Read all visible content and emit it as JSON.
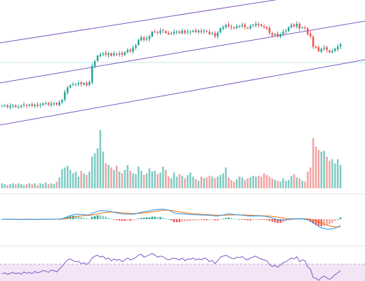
{
  "colors": {
    "up": "#26a69a",
    "down": "#ef5350",
    "volume_up": "#80cbc4",
    "volume_down": "#f3a3a1",
    "channel": "#7e57c2",
    "dotted_ref": "#26a69a",
    "macd_line": "#2196f3",
    "signal_line": "#ff6d00",
    "rsi_line": "#7e57c2",
    "rsi_band": "#f3e5f5",
    "separator": "#e6e6e6"
  },
  "chart_data": [
    {
      "type": "candlestick",
      "panel": "price",
      "ylim": [
        0,
        100
      ],
      "reference_level": 50,
      "closes": [
        12,
        12,
        11,
        12,
        12,
        11,
        11,
        12,
        13,
        12,
        13,
        12,
        13,
        12,
        13,
        14,
        14,
        13,
        14,
        14,
        13,
        15,
        17,
        24,
        28,
        30,
        31,
        31,
        32,
        31,
        32,
        30,
        33,
        47,
        51,
        56,
        57,
        58,
        57,
        58,
        56,
        58,
        57,
        58,
        57,
        59,
        61,
        60,
        63,
        65,
        70,
        72,
        70,
        71,
        73,
        77,
        77,
        76,
        78,
        78,
        76,
        75,
        76,
        77,
        77,
        76,
        78,
        76,
        77,
        77,
        78,
        77,
        78,
        77,
        78,
        77,
        75,
        76,
        73,
        76,
        80,
        81,
        83,
        82,
        81,
        80,
        82,
        82,
        83,
        81,
        80,
        82,
        83,
        84,
        83,
        82,
        81,
        80,
        76,
        74,
        75,
        73,
        75,
        77,
        78,
        81,
        83,
        82,
        84,
        80,
        81,
        80,
        75,
        73,
        64,
        63,
        60,
        62,
        63,
        61,
        59,
        60,
        62,
        64,
        66
      ]
    },
    {
      "type": "bar",
      "panel": "volume",
      "values": [
        6,
        5,
        4,
        5,
        6,
        5,
        6,
        5,
        4,
        5,
        6,
        5,
        6,
        4,
        6,
        5,
        7,
        5,
        6,
        5,
        8,
        13,
        23,
        25,
        27,
        22,
        18,
        20,
        14,
        21,
        18,
        16,
        20,
        38,
        42,
        48,
        70,
        44,
        30,
        28,
        25,
        22,
        27,
        20,
        18,
        22,
        28,
        21,
        18,
        17,
        26,
        21,
        16,
        18,
        24,
        20,
        21,
        17,
        19,
        26,
        22,
        14,
        12,
        19,
        14,
        17,
        15,
        12,
        16,
        19,
        14,
        11,
        9,
        14,
        12,
        13,
        15,
        14,
        12,
        14,
        16,
        18,
        25,
        13,
        10,
        8,
        11,
        14,
        13,
        10,
        12,
        13,
        15,
        14,
        15,
        14,
        18,
        16,
        14,
        12,
        10,
        9,
        8,
        12,
        9,
        10,
        15,
        17,
        13,
        12,
        9,
        8,
        20,
        25,
        60,
        50,
        46,
        44,
        45,
        38,
        33,
        35,
        30,
        35,
        28
      ]
    },
    {
      "type": "line",
      "panel": "macd",
      "ylim": [
        -20,
        20
      ],
      "series": [
        {
          "key": "macd",
          "values": [
            0,
            0,
            -0.1,
            -0.1,
            -0.1,
            -0.2,
            -0.3,
            -0.3,
            -0.3,
            -0.2,
            -0.2,
            -0.2,
            -0.2,
            -0.3,
            -0.2,
            -0.1,
            0,
            -0.1,
            0,
            0.1,
            0,
            0.2,
            0.5,
            1.5,
            2.5,
            3.5,
            4.2,
            4.5,
            4.7,
            4.5,
            4.3,
            4,
            4,
            5.5,
            6.5,
            7.5,
            8,
            8.2,
            8,
            7.5,
            7,
            6.5,
            6,
            5.5,
            5,
            4.8,
            4.8,
            4.5,
            4.8,
            5.2,
            6,
            6.5,
            7,
            7.5,
            7.8,
            8.6,
            9,
            9.2,
            9.5,
            9.4,
            9,
            8.5,
            7.5,
            6,
            5.5,
            5,
            5,
            4.8,
            4.6,
            4.4,
            4.3,
            4.2,
            4.1,
            4,
            3.9,
            3.8,
            3.6,
            3.5,
            3.2,
            3,
            3.5,
            4,
            4.5,
            5,
            4.8,
            4.5,
            4.2,
            3.9,
            3.8,
            3.5,
            3.2,
            3,
            3,
            3.2,
            3.1,
            3,
            2.8,
            2.5,
            1.8,
            1,
            0.3,
            -0.5,
            -1,
            -0.8,
            -0.5,
            -0.2,
            0,
            0.3,
            0.6,
            0.5,
            0.4,
            0.2,
            -0.4,
            -1.8,
            -3.4,
            -5.2,
            -6.8,
            -8.1,
            -8.9,
            -9.4,
            -9.5,
            -9.2,
            -8.4,
            -7.4,
            -6.2
          ]
        },
        {
          "key": "signal",
          "values": [
            0,
            0,
            0,
            -0.05,
            -0.1,
            -0.12,
            -0.15,
            -0.2,
            -0.22,
            -0.22,
            -0.22,
            -0.22,
            -0.22,
            -0.24,
            -0.24,
            -0.22,
            -0.18,
            -0.16,
            -0.14,
            -0.1,
            -0.08,
            -0.04,
            0.08,
            0.4,
            0.9,
            1.5,
            2,
            2.5,
            2.9,
            3.2,
            3.4,
            3.5,
            3.6,
            4,
            4.5,
            5,
            5.6,
            6.1,
            6.4,
            6.6,
            6.7,
            6.7,
            6.6,
            6.4,
            6.1,
            5.9,
            5.7,
            5.5,
            5.4,
            5.4,
            5.5,
            5.7,
            6,
            6.3,
            6.6,
            7,
            7.4,
            7.8,
            8.1,
            8.4,
            8.5,
            8.5,
            8.3,
            7.9,
            7.4,
            6.9,
            6.5,
            6.1,
            5.8,
            5.5,
            5.2,
            5,
            4.8,
            4.6,
            4.5,
            4.4,
            4.2,
            4.1,
            3.9,
            3.7,
            3.7,
            3.7,
            3.8,
            3.9,
            4,
            4.1,
            4.1,
            4.1,
            4.1,
            4,
            3.9,
            3.8,
            3.6,
            3.5,
            3.4,
            3.3,
            3.2,
            3.1,
            2.9,
            2.6,
            2.3,
            1.9,
            1.4,
            1,
            0.7,
            0.5,
            0.4,
            0.4,
            0.4,
            0.4,
            0.4,
            0.4,
            0.3,
            -0.1,
            -0.7,
            -1.6,
            -2.6,
            -3.6,
            -4.6,
            -5.5,
            -6.3,
            -6.9,
            -7.3,
            -7.4,
            -7.3
          ]
        }
      ]
    },
    {
      "type": "line",
      "panel": "rsi",
      "ylim": [
        0,
        100
      ],
      "band": [
        30,
        70
      ],
      "values": [
        48,
        50,
        47,
        49,
        51,
        48,
        50,
        47,
        52,
        49,
        51,
        48,
        53,
        50,
        52,
        55,
        54,
        51,
        56,
        55,
        52,
        58,
        64,
        72,
        78,
        80,
        76,
        74,
        75,
        70,
        72,
        68,
        73,
        82,
        86,
        88,
        84,
        86,
        80,
        82,
        76,
        80,
        77,
        79,
        74,
        78,
        82,
        78,
        80,
        83,
        88,
        90,
        84,
        86,
        89,
        92,
        88,
        84,
        86,
        85,
        80,
        78,
        80,
        82,
        80,
        78,
        82,
        76,
        80,
        79,
        82,
        78,
        80,
        78,
        82,
        80,
        74,
        77,
        70,
        76,
        84,
        86,
        88,
        85,
        82,
        80,
        84,
        83,
        85,
        80,
        78,
        82,
        84,
        86,
        82,
        80,
        78,
        76,
        68,
        64,
        66,
        62,
        67,
        72,
        74,
        78,
        82,
        80,
        85,
        74,
        78,
        76,
        62,
        58,
        40,
        38,
        34,
        40,
        43,
        39,
        36,
        40,
        46,
        50,
        55
      ]
    }
  ]
}
